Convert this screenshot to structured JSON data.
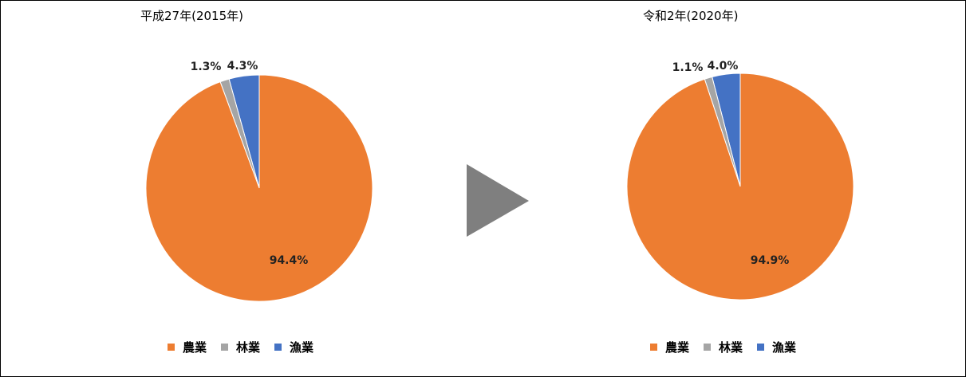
{
  "colors": {
    "agriculture": "#ED7D31",
    "forestry": "#A5A5A5",
    "fishery": "#4472C4",
    "arrow": "#7F7F7F"
  },
  "legend": [
    {
      "label": "農業",
      "color_key": "agriculture"
    },
    {
      "label": "林業",
      "color_key": "forestry"
    },
    {
      "label": "漁業",
      "color_key": "fishery"
    }
  ],
  "chart_data": [
    {
      "type": "pie",
      "title": "平成27年(2015年)",
      "categories": [
        "農業",
        "林業",
        "漁業"
      ],
      "values": [
        94.4,
        1.3,
        4.3
      ],
      "labels": [
        "94.4%",
        "1.3%",
        "4.3%"
      ],
      "legend_position": "bottom"
    },
    {
      "type": "pie",
      "title": "令和2年(2020年)",
      "categories": [
        "農業",
        "林業",
        "漁業"
      ],
      "values": [
        94.9,
        1.1,
        4.0
      ],
      "labels": [
        "94.9%",
        "1.1%",
        "4.0%"
      ],
      "legend_position": "bottom"
    }
  ]
}
